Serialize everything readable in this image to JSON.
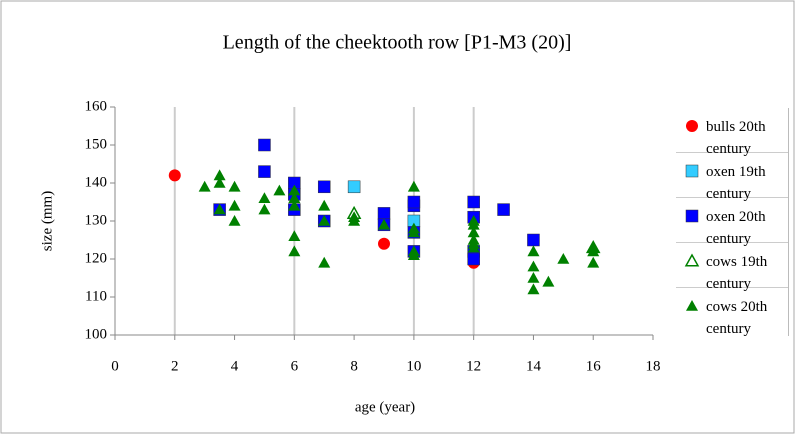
{
  "chart_data": {
    "type": "scatter",
    "title": "Length of the cheektooth row [P1-M3 (20)]",
    "xlabel": "age (year)",
    "ylabel": "size (mm)",
    "xlim": [
      0,
      18
    ],
    "xticks": [
      0,
      2,
      4,
      6,
      8,
      10,
      12,
      14,
      16,
      18
    ],
    "ylim": [
      100,
      160
    ],
    "yticks": [
      100,
      110,
      120,
      130,
      140,
      150,
      160
    ],
    "vlines": [
      2,
      6,
      10,
      12
    ],
    "legend": "right",
    "series": [
      {
        "name": "bulls 20th century",
        "color": "#ff0000",
        "marker": "circle",
        "x": [
          2,
          9,
          12
        ],
        "values": [
          142,
          124,
          119
        ]
      },
      {
        "name": "oxen 19th century",
        "color": "#33ccff",
        "marker": "square",
        "x": [
          8,
          10
        ],
        "values": [
          139,
          130
        ]
      },
      {
        "name": "oxen 20th century",
        "color": "#0000ff",
        "marker": "square",
        "x": [
          3.5,
          5,
          5,
          6,
          6,
          6,
          7,
          7,
          9,
          9,
          10,
          10,
          10,
          10,
          12,
          12,
          12,
          12,
          13,
          14
        ],
        "values": [
          133,
          150,
          143,
          140,
          137,
          133,
          139,
          130,
          132,
          129,
          134,
          135,
          127,
          122,
          135,
          131,
          122,
          120,
          133,
          125
        ]
      },
      {
        "name": "cows 19th century",
        "color": "#008000",
        "marker": "triangle-open",
        "x": [
          8,
          16
        ],
        "values": [
          132,
          123
        ]
      },
      {
        "name": "cows 20th century",
        "color": "#008000",
        "marker": "triangle",
        "x": [
          3,
          3.5,
          3.5,
          3.5,
          4,
          4,
          4,
          5,
          5,
          5.5,
          6,
          6,
          6,
          6,
          6,
          7,
          7,
          7,
          8,
          8,
          9,
          10,
          10,
          10,
          10,
          10,
          12,
          12,
          12,
          12,
          12,
          12,
          14,
          14,
          14,
          14,
          14.5,
          15,
          16,
          16,
          16
        ],
        "values": [
          139,
          142,
          140,
          133,
          139,
          134,
          130,
          136,
          133,
          138,
          138,
          136,
          134,
          126,
          122,
          134,
          130,
          119,
          131,
          130,
          129,
          139,
          128,
          127,
          122,
          121,
          130,
          129,
          127,
          125,
          124,
          123,
          122,
          118,
          115,
          112,
          114,
          120,
          123,
          119,
          122
        ]
      }
    ]
  }
}
